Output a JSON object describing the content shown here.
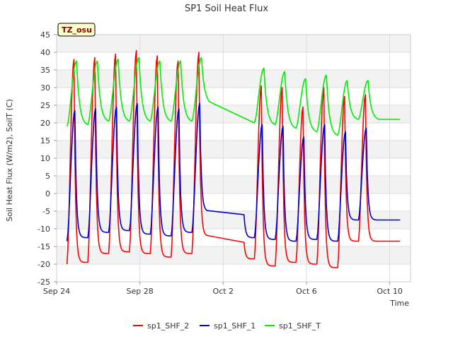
{
  "chart_data": {
    "type": "line",
    "title": "SP1 Soil Heat Flux",
    "xlabel": "Time",
    "ylabel": "Soil Heat Flux (W/m2), SoilT (C)",
    "badge": "TZ_osu",
    "ylim": [
      -25,
      45
    ],
    "yticks": [
      -25,
      -20,
      -15,
      -10,
      -5,
      0,
      5,
      10,
      15,
      20,
      25,
      30,
      35,
      40,
      45
    ],
    "xlim": [
      "2023-09-24",
      "2023-10-11"
    ],
    "xticks": [
      {
        "date": "2023-09-24",
        "label": "Sep 24"
      },
      {
        "date": "2023-09-28",
        "label": "Sep 28"
      },
      {
        "date": "2023-10-02",
        "label": "Oct 2"
      },
      {
        "date": "2023-10-06",
        "label": "Oct 6"
      },
      {
        "date": "2023-10-10",
        "label": "Oct 10"
      }
    ],
    "grid": true,
    "legend_position": "bottom",
    "series": [
      {
        "name": "sp1_SHF_2",
        "color": "#ff0000",
        "diurnal": {
          "start": "2023-09-24T12:00",
          "end": "2023-10-10T12:00",
          "peak_offset_hours": 8,
          "tail": 0.035,
          "peaks": [
            38,
            38.5,
            39.5,
            40.5,
            39,
            37.5,
            40,
            29.5,
            38.5,
            30.5,
            30,
            24.5,
            30,
            27.5,
            28
          ],
          "troughs": [
            -20,
            -19.5,
            -17,
            -16.5,
            -17,
            -18,
            -17,
            -12,
            -16,
            -18.5,
            -20.5,
            -19.5,
            -20,
            -21,
            -13.5
          ]
        },
        "gap": {
          "from": "2023-10-01T06:00",
          "to": "2023-10-03T00:00"
        }
      },
      {
        "name": "sp1_SHF_1",
        "color": "#0000cc",
        "diurnal": {
          "start": "2023-09-24T12:00",
          "end": "2023-10-10T12:00",
          "peak_offset_hours": 9,
          "tail": 0.04,
          "peaks": [
            23.5,
            24,
            24.5,
            25.5,
            24.5,
            24,
            25.5,
            24,
            25,
            19.5,
            19,
            16,
            19.5,
            17.5,
            18.5
          ],
          "troughs": [
            -13.5,
            -12.5,
            -11,
            -10.5,
            -11.5,
            -12,
            -11,
            -5,
            -12,
            -12.5,
            -13,
            -13.5,
            -13,
            -13.5,
            -7.5
          ]
        },
        "gap": {
          "from": "2023-10-01T06:00",
          "to": "2023-10-03T00:00"
        }
      },
      {
        "name": "sp1_SHF_T",
        "color": "#00ee00",
        "diurnal": {
          "start": "2023-09-24T12:00",
          "end": "2023-10-10T12:00",
          "peak_offset_hours": 11,
          "tail": 0.09,
          "peaks": [
            37.5,
            37.5,
            38,
            38.5,
            37.5,
            37.5,
            38.5,
            38,
            38.5,
            35.5,
            34.5,
            32.5,
            33.5,
            32,
            32
          ],
          "troughs": [
            19,
            19.5,
            20.5,
            20.5,
            20.5,
            20.5,
            20.5,
            25.5,
            21,
            20,
            19.5,
            18.5,
            17.5,
            16.5,
            21
          ]
        },
        "gap": {
          "from": "2023-10-01T09:00",
          "to": "2023-10-03T12:00"
        }
      }
    ]
  }
}
